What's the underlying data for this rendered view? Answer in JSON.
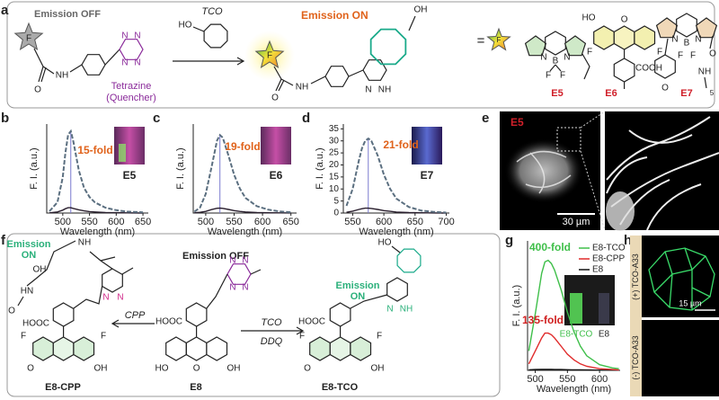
{
  "figure": {
    "panel_labels": [
      "a",
      "b",
      "c",
      "d",
      "e",
      "f",
      "g",
      "h"
    ],
    "a": {
      "off": "Emission OFF",
      "on": "Emission ON",
      "tco": "TCO",
      "tetrazine": "Tetrazine",
      "quencher": "(Quencher)",
      "equals": "=",
      "compounds": [
        "E5",
        "E6",
        "E7"
      ],
      "atoms": [
        "F",
        "O",
        "NH",
        "N",
        "N",
        "N",
        "N",
        "HO",
        "F",
        "O",
        "NH",
        "N",
        "NH",
        "OH",
        "F",
        "N",
        "B",
        "N",
        "F",
        "F",
        "HO",
        "O",
        "O",
        "F",
        "F",
        "COOH",
        "N",
        "B",
        "N",
        "F",
        "F",
        "O",
        "O",
        "NH",
        "5"
      ]
    },
    "e": {
      "label": "E5",
      "scale": "30 µm"
    },
    "f": {
      "off": "Emission OFF",
      "on_left": [
        "Emission",
        "ON"
      ],
      "on_right": [
        "Emission",
        "ON"
      ],
      "cpp": "CPP",
      "tco": "TCO",
      "ddq": "DDQ",
      "compounds": [
        "E8-CPP",
        "E8",
        "E8-TCO"
      ],
      "atoms": [
        "OH",
        "O",
        "HN",
        "NH",
        "N",
        "N",
        "HOOC",
        "F",
        "F",
        "O",
        "OH",
        "N",
        "N",
        "N",
        "N",
        "HOOC",
        "HO",
        "O",
        "OH",
        "HO",
        "N",
        "NH",
        "HOOC",
        "F",
        "F",
        "O",
        "OH"
      ]
    },
    "h": {
      "plus": "(+) TCO-A33",
      "minus": "(-) TCO-A33",
      "scale": "15 µm"
    }
  },
  "chart_data": [
    {
      "type": "line",
      "xlabel": "Wavelength (nm)",
      "ylabel": "F. I. (a.u.)",
      "peak_line": true,
      "x": [
        475,
        490,
        500,
        505,
        510,
        515,
        520,
        530,
        540,
        550,
        560,
        580,
        600,
        620,
        650
      ],
      "series": [
        {
          "color": "#5b6f80",
          "dashed": true,
          "values": [
            0.5,
            3,
            10,
            17,
            22,
            23,
            20,
            12,
            7,
            4.5,
            3,
            1.5,
            0.8,
            0.4,
            0.2
          ]
        },
        {
          "color": "#2a1f2e",
          "values": [
            0.05,
            0.3,
            0.8,
            1.2,
            1.5,
            1.5,
            1.3,
            0.9,
            0.6,
            0.4,
            0.3,
            0.15,
            0.1,
            0.05,
            0
          ]
        }
      ],
      "xlim": [
        470,
        660
      ],
      "xticks": [
        500,
        550,
        600,
        650
      ],
      "ylim": [
        0,
        25
      ],
      "annotations": [
        {
          "text": "15-fold",
          "color": "#e0621a"
        },
        {
          "text": "E5",
          "color": "#222222"
        }
      ]
    },
    {
      "type": "line",
      "xlabel": "Wavelength (nm)",
      "ylabel": "F. I. (a.u.)",
      "peak_line": true,
      "x": [
        480,
        490,
        500,
        510,
        520,
        525,
        530,
        540,
        550,
        560,
        570,
        590,
        610,
        630,
        650
      ],
      "series": [
        {
          "color": "#5b6f80",
          "dashed": true,
          "values": [
            1,
            4,
            14,
            33,
            53,
            57,
            55,
            42,
            28,
            18,
            11,
            5,
            2.5,
            1.2,
            0.6
          ]
        },
        {
          "color": "#2a1f2e",
          "values": [
            0.2,
            0.5,
            1.2,
            2.5,
            3.5,
            3.6,
            3.4,
            2.6,
            1.8,
            1.2,
            0.8,
            0.4,
            0.2,
            0.1,
            0.05
          ]
        }
      ],
      "xlim": [
        478,
        660
      ],
      "xticks": [
        500,
        550,
        600,
        650
      ],
      "ylim": [
        0,
        65
      ],
      "annotations": [
        {
          "text": "19-fold",
          "color": "#e0621a"
        },
        {
          "text": "E6",
          "color": "#222222"
        }
      ]
    },
    {
      "type": "line",
      "xlabel": "Wavelength (nm)",
      "ylabel": "F. I. (a.u.)",
      "peak_line": true,
      "x": [
        540,
        550,
        560,
        565,
        570,
        575,
        580,
        590,
        600,
        610,
        620,
        640,
        660,
        680,
        700
      ],
      "series": [
        {
          "color": "#5b6f80",
          "dashed": true,
          "values": [
            3,
            10,
            22,
            27,
            30,
            31,
            30,
            24,
            16,
            10,
            6,
            2.5,
            1,
            0.5,
            0.2
          ]
        },
        {
          "color": "#2a1f2e",
          "values": [
            0.3,
            0.8,
            1.5,
            1.8,
            2,
            2,
            1.9,
            1.5,
            1,
            0.7,
            0.4,
            0.2,
            0.1,
            0.05,
            0
          ]
        }
      ],
      "xlim": [
        535,
        705
      ],
      "xticks": [
        550,
        600,
        650,
        700
      ],
      "ylim": [
        0,
        37
      ],
      "yticks": [
        0,
        5,
        10,
        15,
        20,
        25,
        30,
        35
      ],
      "annotations": [
        {
          "text": "21-fold",
          "color": "#e0621a"
        },
        {
          "text": "E7",
          "color": "#222222"
        }
      ]
    },
    {
      "type": "line",
      "xlabel": "Wavelength (nm)",
      "ylabel": "F. I. (a.u.)",
      "legend": "upper right",
      "x": [
        490,
        500,
        510,
        515,
        520,
        525,
        530,
        540,
        550,
        560,
        570,
        580,
        600,
        620,
        630
      ],
      "series": [
        {
          "name": "E8-TCO",
          "color": "#3fbf4a",
          "values": [
            12,
            35,
            60,
            67,
            68,
            66,
            62,
            50,
            36,
            24,
            15,
            9,
            3.5,
            1.5,
            1
          ]
        },
        {
          "name": "E8-CPP",
          "color": "#e02b2b",
          "values": [
            4,
            12,
            20,
            23,
            23,
            22,
            20,
            15,
            10,
            6.5,
            4,
            2.5,
            1,
            0.5,
            0.3
          ]
        },
        {
          "name": "E8",
          "color": "#111111",
          "values": [
            0.3,
            0.5,
            0.6,
            0.6,
            0.6,
            0.6,
            0.5,
            0.5,
            0.4,
            0.3,
            0.3,
            0.2,
            0.1,
            0.1,
            0.1
          ]
        }
      ],
      "xlim": [
        488,
        632
      ],
      "xticks": [
        500,
        550,
        600
      ],
      "ylim": [
        0,
        80
      ],
      "annotations": [
        {
          "text": "400-fold",
          "color": "#3fbf4a"
        },
        {
          "text": "135-fold",
          "color": "#d02020"
        }
      ],
      "inset_labels": [
        "E8-TCO",
        "E8"
      ]
    }
  ]
}
